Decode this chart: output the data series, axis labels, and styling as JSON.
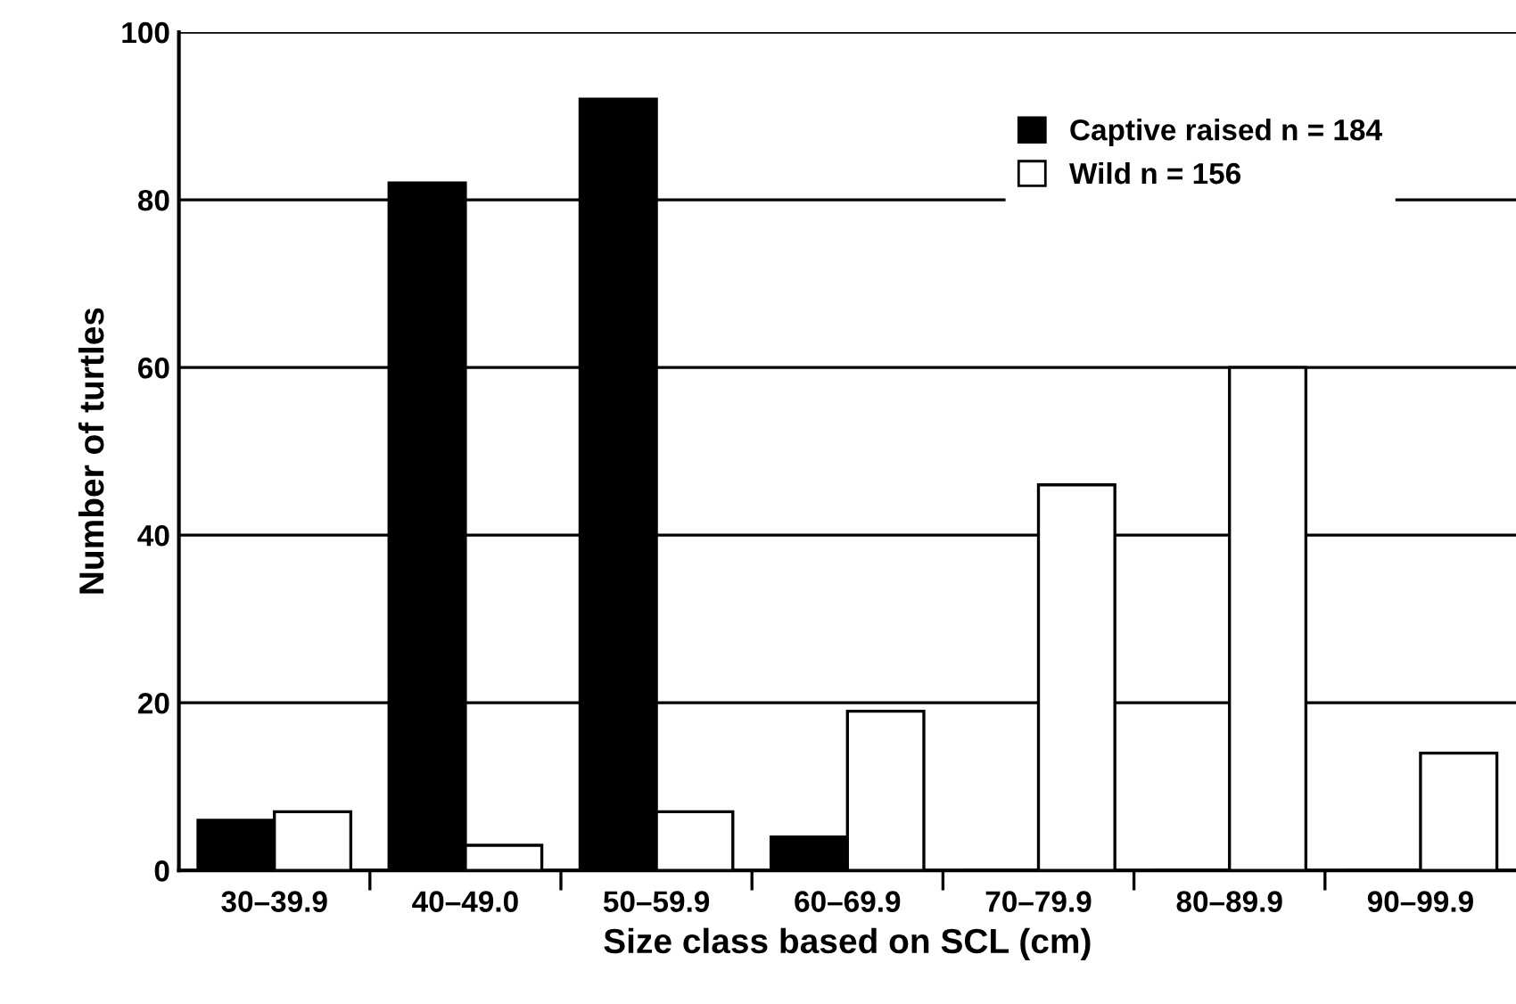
{
  "chart_data": {
    "type": "bar",
    "xlabel": "Size class based on SCL (cm)",
    "ylabel": "Number of turtles",
    "categories": [
      "30–39.9",
      "40–49.0",
      "50–59.9",
      "60–69.9",
      "70–79.9",
      "80–89.9",
      "90–99.9"
    ],
    "series": [
      {
        "name": "Captive raised n = 184",
        "color": "#000000",
        "values": [
          6,
          82,
          92,
          4,
          0,
          0,
          0
        ]
      },
      {
        "name": "Wild n = 156",
        "color": "#ffffff",
        "values": [
          7,
          3,
          7,
          19,
          46,
          60,
          14
        ]
      }
    ],
    "ylim": [
      0,
      100
    ],
    "yticks": [
      0,
      20,
      40,
      60,
      80,
      100
    ],
    "grid": "y",
    "legend": "top right"
  }
}
